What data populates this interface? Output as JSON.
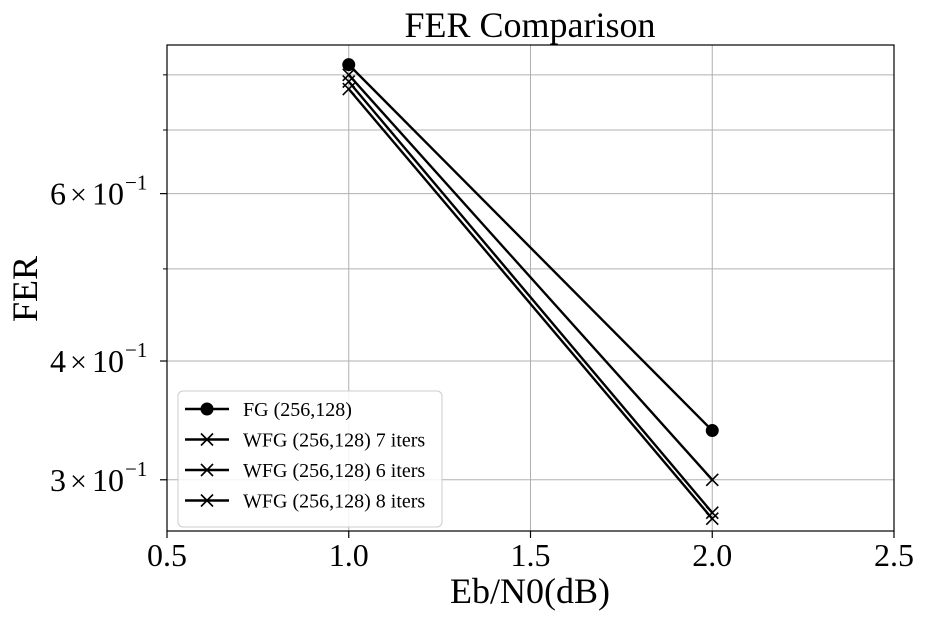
{
  "chart_data": {
    "type": "line",
    "title": "FER Comparison",
    "xlabel": "Eb/N0(dB)",
    "ylabel": "FER",
    "xlim": [
      0.5,
      2.5
    ],
    "ylim": [
      0.265,
      0.86
    ],
    "yscale": "log",
    "grid": true,
    "legend_position": "lower-left",
    "x_ticks": [
      {
        "value": 0.5,
        "label": "0.5"
      },
      {
        "value": 1.0,
        "label": "1.0"
      },
      {
        "value": 1.5,
        "label": "1.5"
      },
      {
        "value": 2.0,
        "label": "2.0"
      },
      {
        "value": 2.5,
        "label": "2.5"
      }
    ],
    "y_major_ticks": [
      {
        "value": 0.3,
        "mantissa": "3",
        "exponent": "−1"
      },
      {
        "value": 0.4,
        "mantissa": "4",
        "exponent": "−1"
      },
      {
        "value": 0.6,
        "mantissa": "6",
        "exponent": "−1"
      }
    ],
    "y_minor_ticks": [
      0.5,
      0.7,
      0.8
    ],
    "series": [
      {
        "name": "FG (256,128)",
        "marker": "circle",
        "color": "#000000",
        "x": [
          1.0,
          2.0
        ],
        "y": [
          0.82,
          0.338
        ]
      },
      {
        "name": "WFG (256,128) 7 iters",
        "marker": "x",
        "color": "#000000",
        "x": [
          1.0,
          2.0
        ],
        "y": [
          0.8,
          0.3
        ]
      },
      {
        "name": "WFG (256,128) 6 iters",
        "marker": "x",
        "color": "#000000",
        "x": [
          1.0,
          2.0
        ],
        "y": [
          0.787,
          0.277
        ]
      },
      {
        "name": "WFG (256,128) 8 iters",
        "marker": "x",
        "color": "#000000",
        "x": [
          1.0,
          2.0
        ],
        "y": [
          0.773,
          0.273
        ]
      }
    ]
  }
}
